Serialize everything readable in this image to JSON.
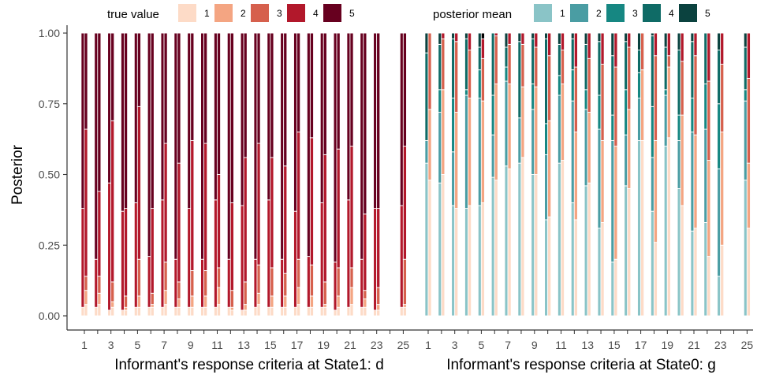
{
  "chart_data": {
    "type": "bar",
    "stacked": true,
    "ylabel": "Posterior",
    "ylim": [
      0,
      1
    ],
    "yticks": [
      "0.00",
      "0.25",
      "0.50",
      "0.75",
      "1.00"
    ],
    "xtick_labels": [
      "1",
      "3",
      "5",
      "7",
      "9",
      "11",
      "13",
      "15",
      "17",
      "19",
      "21",
      "23",
      "25"
    ],
    "categories": [
      1,
      2,
      3,
      4,
      5,
      6,
      7,
      8,
      9,
      10,
      11,
      12,
      13,
      14,
      15,
      16,
      17,
      18,
      19,
      20,
      21,
      22,
      23,
      25
    ],
    "legend_position": "top",
    "levels": [
      "1",
      "2",
      "3",
      "4",
      "5"
    ],
    "panels": [
      {
        "xlabel": "Informant's response criteria at State1: d",
        "legend_title": "true value",
        "legend": {
          "title": "true value",
          "labels": [
            "1",
            "2",
            "3",
            "4",
            "5"
          ]
        },
        "colors": [
          "#fddbc7",
          "#f4a582",
          "#d6604d",
          "#b2182b",
          "#67001f"
        ],
        "bars": [
          {
            "x": 1,
            "left": [
              0.03,
              0.0,
              0.0,
              0.35,
              0.62
            ],
            "right": [
              0.04,
              0.05,
              0.05,
              0.52,
              0.34
            ]
          },
          {
            "x": 2,
            "left": [
              0.03,
              0.0,
              0.0,
              0.17,
              0.8
            ],
            "right": [
              0.04,
              0.04,
              0.06,
              0.3,
              0.56
            ]
          },
          {
            "x": 3,
            "left": [
              0.02,
              0.0,
              0.0,
              0.45,
              0.53
            ],
            "right": [
              0.03,
              0.02,
              0.07,
              0.57,
              0.31
            ]
          },
          {
            "x": 4,
            "left": [
              0.02,
              0.0,
              0.0,
              0.35,
              0.63
            ],
            "right": [
              0.02,
              0.01,
              0.04,
              0.31,
              0.62
            ]
          },
          {
            "x": 5,
            "left": [
              0.03,
              0.0,
              0.0,
              0.37,
              0.6
            ],
            "right": [
              0.03,
              0.04,
              0.13,
              0.54,
              0.26
            ]
          },
          {
            "x": 6,
            "left": [
              0.03,
              0.0,
              0.0,
              0.18,
              0.79
            ],
            "right": [
              0.03,
              0.01,
              0.04,
              0.3,
              0.62
            ]
          },
          {
            "x": 7,
            "left": [
              0.03,
              0.0,
              0.0,
              0.38,
              0.59
            ],
            "right": [
              0.04,
              0.05,
              0.1,
              0.42,
              0.39
            ]
          },
          {
            "x": 8,
            "left": [
              0.03,
              0.0,
              0.0,
              0.17,
              0.8
            ],
            "right": [
              0.03,
              0.03,
              0.06,
              0.42,
              0.46
            ]
          },
          {
            "x": 9,
            "left": [
              0.03,
              0.0,
              0.0,
              0.35,
              0.62
            ],
            "right": [
              0.03,
              0.04,
              0.09,
              0.46,
              0.38
            ]
          },
          {
            "x": 10,
            "left": [
              0.03,
              0.0,
              0.0,
              0.17,
              0.8
            ],
            "right": [
              0.03,
              0.04,
              0.09,
              0.45,
              0.39
            ]
          },
          {
            "x": 11,
            "left": [
              0.03,
              0.0,
              0.0,
              0.38,
              0.59
            ],
            "right": [
              0.04,
              0.06,
              0.07,
              0.33,
              0.5
            ]
          },
          {
            "x": 12,
            "left": [
              0.03,
              0.0,
              0.0,
              0.17,
              0.8
            ],
            "right": [
              0.02,
              0.01,
              0.06,
              0.31,
              0.6
            ]
          },
          {
            "x": 13,
            "left": [
              0.02,
              0.0,
              0.0,
              0.37,
              0.61
            ],
            "right": [
              0.02,
              0.02,
              0.08,
              0.44,
              0.44
            ]
          },
          {
            "x": 14,
            "left": [
              0.03,
              0.0,
              0.0,
              0.17,
              0.8
            ],
            "right": [
              0.04,
              0.04,
              0.1,
              0.43,
              0.39
            ]
          },
          {
            "x": 15,
            "left": [
              0.03,
              0.0,
              0.0,
              0.38,
              0.59
            ],
            "right": [
              0.03,
              0.04,
              0.1,
              0.39,
              0.44
            ]
          },
          {
            "x": 16,
            "left": [
              0.03,
              0.0,
              0.0,
              0.17,
              0.8
            ],
            "right": [
              0.03,
              0.04,
              0.08,
              0.38,
              0.47
            ]
          },
          {
            "x": 17,
            "left": [
              0.03,
              0.0,
              0.0,
              0.34,
              0.63
            ],
            "right": [
              0.04,
              0.06,
              0.1,
              0.45,
              0.35
            ]
          },
          {
            "x": 18,
            "left": [
              0.03,
              0.0,
              0.0,
              0.18,
              0.79
            ],
            "right": [
              0.03,
              0.04,
              0.11,
              0.45,
              0.37
            ]
          },
          {
            "x": 19,
            "left": [
              0.03,
              0.0,
              0.0,
              0.37,
              0.6
            ],
            "right": [
              0.03,
              0.01,
              0.08,
              0.45,
              0.43
            ]
          },
          {
            "x": 20,
            "left": [
              0.02,
              0.0,
              0.0,
              0.17,
              0.81
            ],
            "right": [
              0.03,
              0.04,
              0.1,
              0.42,
              0.41
            ]
          },
          {
            "x": 21,
            "left": [
              0.03,
              0.0,
              0.0,
              0.38,
              0.59
            ],
            "right": [
              0.04,
              0.06,
              0.07,
              0.43,
              0.4
            ]
          },
          {
            "x": 22,
            "left": [
              0.03,
              0.0,
              0.0,
              0.17,
              0.8
            ],
            "right": [
              0.03,
              0.03,
              0.03,
              0.27,
              0.64
            ]
          },
          {
            "x": 23,
            "left": [
              0.02,
              0.0,
              0.0,
              0.36,
              0.62
            ],
            "right": [
              0.02,
              0.02,
              0.06,
              0.28,
              0.62
            ]
          },
          {
            "x": 25,
            "left": [
              0.03,
              0.0,
              0.0,
              0.36,
              0.61
            ],
            "right": [
              0.03,
              0.01,
              0.16,
              0.4,
              0.4
            ]
          }
        ]
      },
      {
        "xlabel": "Informant's response criteria at State0: g",
        "legend_title": "posterior mean",
        "legend": {
          "title": "posterior mean",
          "labels": [
            "1",
            "2",
            "3",
            "4",
            "5"
          ]
        },
        "colors": [
          "#8ac4c7",
          "#4a9da3",
          "#168782",
          "#0f6b66",
          "#0b423f"
        ],
        "overlay_colors": [
          "#fddbc7",
          "#f4a582",
          "#d6604d",
          "#b2182b"
        ],
        "bars": [
          {
            "x": 1,
            "left": [
              0.54,
              0.08,
              0.0,
              0.31,
              0.07
            ],
            "right": [
              0.48,
              0.25,
              0.27,
              0.0,
              0.0
            ]
          },
          {
            "x": 2,
            "left": [
              0.47,
              0.25,
              0.08,
              0.16,
              0.04
            ],
            "right": [
              0.5,
              0.3,
              0.18,
              0.02,
              0.0
            ]
          },
          {
            "x": 3,
            "left": [
              0.39,
              0.19,
              0.19,
              0.21,
              0.02
            ],
            "right": [
              0.38,
              0.34,
              0.25,
              0.03,
              0.0
            ]
          },
          {
            "x": 4,
            "left": [
              0.38,
              0.4,
              0.02,
              0.18,
              0.02
            ],
            "right": [
              0.39,
              0.38,
              0.17,
              0.06,
              0.0
            ]
          },
          {
            "x": 5,
            "left": [
              0.39,
              0.38,
              0.1,
              0.08,
              0.05
            ],
            "right": [
              0.4,
              0.36,
              0.15,
              0.07,
              0.02
            ]
          },
          {
            "x": 6,
            "left": [
              0.49,
              0.15,
              0.14,
              0.22,
              0.0
            ],
            "right": [
              0.48,
              0.34,
              0.17,
              0.01,
              0.0
            ]
          },
          {
            "x": 7,
            "left": [
              0.53,
              0.3,
              0.05,
              0.07,
              0.05
            ],
            "right": [
              0.52,
              0.3,
              0.14,
              0.04,
              0.0
            ]
          },
          {
            "x": 8,
            "left": [
              0.54,
              0.16,
              0.0,
              0.27,
              0.03
            ],
            "right": [
              0.56,
              0.25,
              0.15,
              0.04,
              0.0
            ]
          },
          {
            "x": 9,
            "left": [
              0.5,
              0.23,
              0.09,
              0.16,
              0.02
            ],
            "right": [
              0.5,
              0.31,
              0.14,
              0.05,
              0.0
            ]
          },
          {
            "x": 10,
            "left": [
              0.34,
              0.23,
              0.11,
              0.3,
              0.02
            ],
            "right": [
              0.35,
              0.34,
              0.23,
              0.08,
              0.0
            ]
          },
          {
            "x": 11,
            "left": [
              0.54,
              0.24,
              0.07,
              0.11,
              0.04
            ],
            "right": [
              0.55,
              0.27,
              0.12,
              0.06,
              0.0
            ]
          },
          {
            "x": 12,
            "left": [
              0.4,
              0.36,
              0.11,
              0.11,
              0.02
            ],
            "right": [
              0.34,
              0.31,
              0.23,
              0.12,
              0.0
            ]
          },
          {
            "x": 13,
            "left": [
              0.46,
              0.27,
              0.07,
              0.16,
              0.04
            ],
            "right": [
              0.47,
              0.25,
              0.19,
              0.09,
              0.0
            ]
          },
          {
            "x": 14,
            "left": [
              0.31,
              0.35,
              0.12,
              0.19,
              0.03
            ],
            "right": [
              0.33,
              0.29,
              0.27,
              0.11,
              0.0
            ]
          },
          {
            "x": 15,
            "left": [
              0.19,
              0.43,
              0.09,
              0.21,
              0.08
            ],
            "right": [
              0.2,
              0.4,
              0.28,
              0.12,
              0.0
            ]
          },
          {
            "x": 16,
            "left": [
              0.46,
              0.18,
              0.16,
              0.17,
              0.03
            ],
            "right": [
              0.45,
              0.28,
              0.22,
              0.05,
              0.0
            ]
          },
          {
            "x": 17,
            "left": [
              0.62,
              0.15,
              0.09,
              0.08,
              0.06
            ],
            "right": [
              0.62,
              0.25,
              0.13,
              0.0,
              0.0
            ]
          },
          {
            "x": 18,
            "left": [
              0.37,
              0.19,
              0.18,
              0.25,
              0.01
            ],
            "right": [
              0.26,
              0.36,
              0.3,
              0.08,
              0.0
            ]
          },
          {
            "x": 19,
            "left": [
              0.6,
              0.18,
              0.02,
              0.15,
              0.05
            ],
            "right": [
              0.63,
              0.25,
              0.04,
              0.08,
              0.0
            ]
          },
          {
            "x": 20,
            "left": [
              0.45,
              0.17,
              0.09,
              0.23,
              0.06
            ],
            "right": [
              0.39,
              0.32,
              0.19,
              0.1,
              0.0
            ]
          },
          {
            "x": 21,
            "left": [
              0.3,
              0.35,
              0.12,
              0.2,
              0.03
            ],
            "right": [
              0.31,
              0.33,
              0.28,
              0.08,
              0.0
            ]
          },
          {
            "x": 22,
            "left": [
              0.33,
              0.33,
              0.16,
              0.18,
              0.0
            ],
            "right": [
              0.21,
              0.34,
              0.28,
              0.17,
              0.0
            ]
          },
          {
            "x": 23,
            "left": [
              0.14,
              0.38,
              0.23,
              0.19,
              0.06
            ],
            "right": [
              0.25,
              0.4,
              0.24,
              0.11,
              0.0
            ]
          },
          {
            "x": 25,
            "left": [
              0.48,
              0.28,
              0.04,
              0.15,
              0.05
            ],
            "right": [
              0.31,
              0.23,
              0.3,
              0.16,
              0.0
            ]
          }
        ]
      }
    ]
  }
}
